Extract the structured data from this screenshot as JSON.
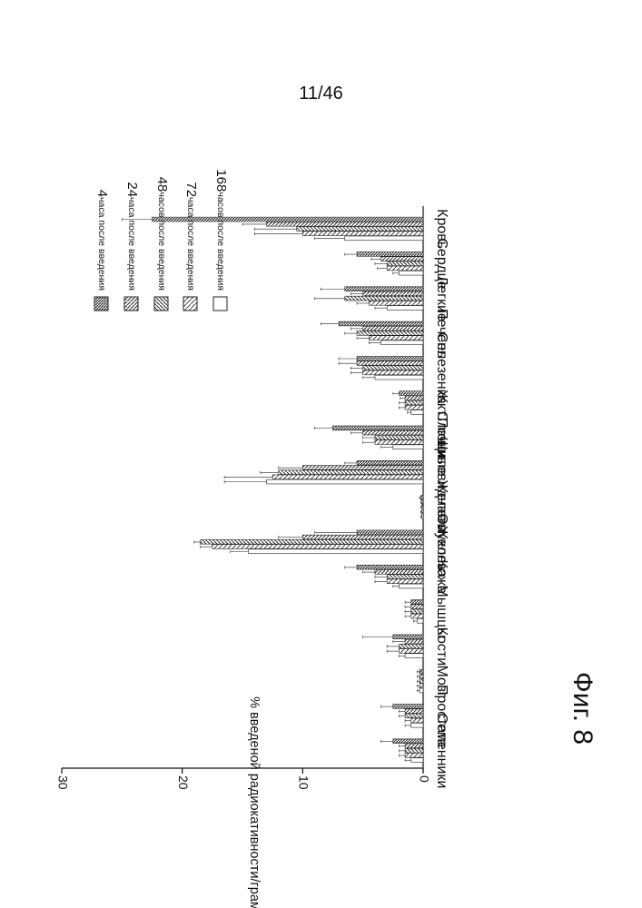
{
  "page": {
    "number": "11/46"
  },
  "chart_data": {
    "type": "bar",
    "orientation": "rotated-90-clockwise",
    "figure_label": "Фиг. 8",
    "ylabel": "% введеной радиокативности/грамм",
    "ylim": [
      0,
      30
    ],
    "yticks": [
      0,
      10,
      20,
      30
    ],
    "legend_position": "top-right",
    "legend_visible": true,
    "categories": [
      "Кровь",
      "Сердце",
      "Легкие",
      "Печень",
      "Селезенка",
      "Жкт",
      "Почки",
      "Слюнные Железы",
      "Щитовидная Железа",
      "Опухоль",
      "Кожа",
      "Мышцы",
      "Кости",
      "Мозг",
      "Простата",
      "Семенники"
    ],
    "series": [
      {
        "name": "4 часа после введения",
        "num": "4",
        "text": "часа после введения",
        "pattern": "p1",
        "values": [
          22.5,
          5.5,
          6.5,
          7.0,
          5.5,
          2.0,
          7.5,
          5.5,
          0.2,
          5.5,
          5.5,
          1.0,
          2.5,
          0.3,
          2.5,
          2.5
        ],
        "errors": [
          2.5,
          1.0,
          2.0,
          1.5,
          1.5,
          0.5,
          1.5,
          1.0,
          0.1,
          3.5,
          1.0,
          0.5,
          2.5,
          0.2,
          1.0,
          1.0
        ]
      },
      {
        "name": "24 часа после введения",
        "num": "24",
        "text": "часа после введения",
        "pattern": "p2",
        "values": [
          13.0,
          3.5,
          5.0,
          5.0,
          5.5,
          1.5,
          5.0,
          10.0,
          0.1,
          10.0,
          4.0,
          1.0,
          1.5,
          0.3,
          1.5,
          1.5
        ],
        "errors": [
          2.0,
          0.8,
          1.0,
          1.0,
          1.5,
          0.4,
          1.0,
          2.0,
          0.1,
          2.0,
          1.0,
          0.5,
          1.0,
          0.2,
          0.5,
          0.5
        ]
      },
      {
        "name": "48 часов после введения",
        "num": "48",
        "text": "часов после введения",
        "pattern": "p3",
        "values": [
          10.5,
          3.0,
          6.5,
          5.5,
          5.0,
          1.5,
          4.0,
          12.0,
          0.1,
          18.5,
          3.0,
          1.0,
          2.0,
          0.3,
          1.5,
          1.5
        ],
        "errors": [
          3.5,
          1.0,
          2.5,
          1.0,
          1.0,
          0.5,
          1.0,
          1.5,
          0.1,
          0.5,
          1.0,
          0.5,
          1.0,
          0.2,
          0.5,
          0.5
        ]
      },
      {
        "name": "72 часа после введения",
        "num": "72",
        "text": "часа после введения",
        "pattern": "p4",
        "values": [
          10.0,
          3.0,
          4.5,
          4.5,
          5.0,
          1.5,
          4.0,
          12.5,
          0.1,
          17.5,
          3.0,
          1.0,
          2.0,
          0.3,
          1.0,
          1.5
        ],
        "errors": [
          4.0,
          0.8,
          1.0,
          1.0,
          1.0,
          0.5,
          1.0,
          4.0,
          0.1,
          1.0,
          1.0,
          0.5,
          1.0,
          0.2,
          0.5,
          0.5
        ]
      },
      {
        "name": "168 часов после введения",
        "num": "168",
        "text": "часов после введения",
        "pattern": "p5",
        "values": [
          6.5,
          2.0,
          3.0,
          3.5,
          4.0,
          1.0,
          2.5,
          13.0,
          0.1,
          14.5,
          2.0,
          0.5,
          1.5,
          0.3,
          1.0,
          1.0
        ],
        "errors": [
          2.5,
          0.5,
          1.0,
          1.0,
          1.0,
          0.3,
          1.0,
          3.5,
          0.1,
          1.5,
          0.5,
          0.3,
          0.5,
          0.2,
          0.5,
          0.5
        ]
      }
    ]
  }
}
